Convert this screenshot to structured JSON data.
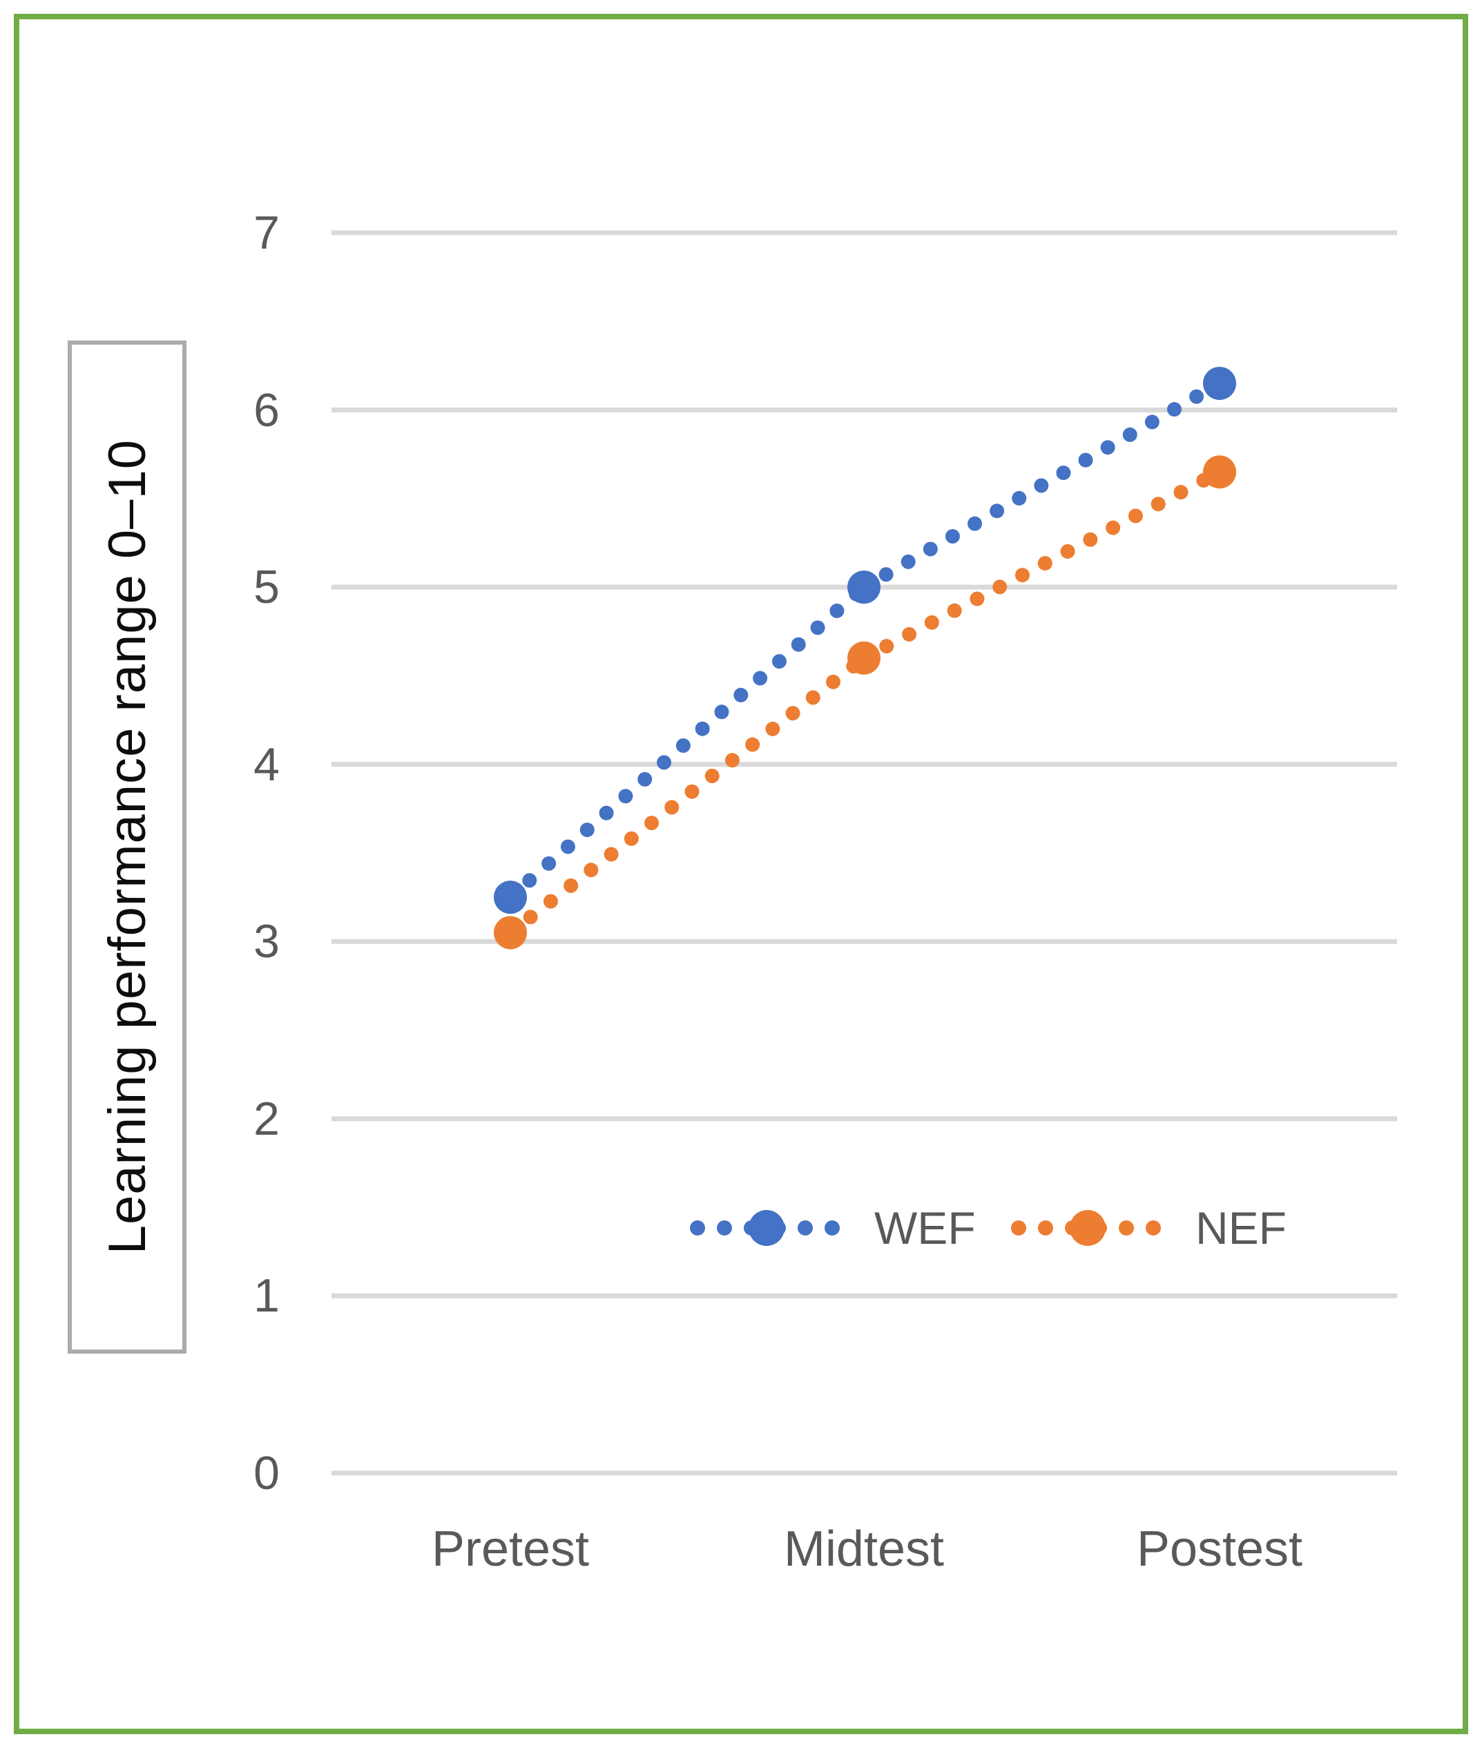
{
  "figure": {
    "border_color": "#70AD47",
    "background_color": "#FFFFFF",
    "plot_box_border_color": "#ABABAB",
    "gridline_color": "#D9D9D9",
    "tick_label_color": "#595959"
  },
  "axis_title": {
    "text": "Learning performance range 0–10"
  },
  "legend": {
    "items": [
      {
        "label": "WEF",
        "color": "#4472C4"
      },
      {
        "label": "NEF",
        "color": "#ED7D31"
      }
    ]
  },
  "chart_data": {
    "type": "line",
    "categories": [
      "Pretest",
      "Midtest",
      "Postest"
    ],
    "series": [
      {
        "name": "WEF",
        "color": "#4472C4",
        "line_style": "dotted",
        "marker": "circle",
        "values": [
          3.25,
          5.0,
          6.15
        ]
      },
      {
        "name": "NEF",
        "color": "#ED7D31",
        "line_style": "dotted",
        "marker": "circle",
        "values": [
          3.05,
          4.6,
          5.65
        ]
      }
    ],
    "title": "",
    "xlabel": "",
    "ylabel": "Learning performance range 0–10",
    "ylim": [
      0,
      7
    ],
    "yticks": [
      0,
      1,
      2,
      3,
      4,
      5,
      6,
      7
    ],
    "grid": "horizontal",
    "legend_position": "inside-lower-middle"
  }
}
